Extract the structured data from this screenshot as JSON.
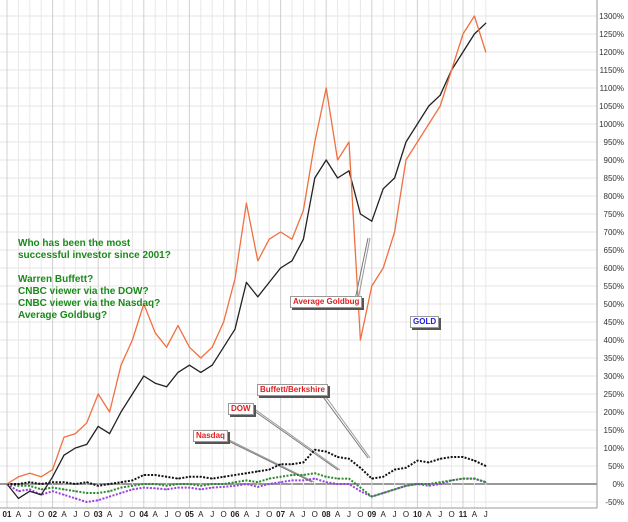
{
  "chart_data": {
    "type": "line",
    "title": "",
    "xlabel": "",
    "ylabel": "",
    "x_range": [
      2001.0,
      2011.6
    ],
    "ylim": [
      -60,
      1340
    ],
    "y_ticks": [
      -50,
      0,
      50,
      100,
      150,
      200,
      250,
      300,
      350,
      400,
      450,
      500,
      550,
      600,
      650,
      700,
      750,
      800,
      850,
      900,
      950,
      1000,
      1050,
      1100,
      1150,
      1200,
      1250,
      1300
    ],
    "y_tick_suffix": "%",
    "x_tick_labels": {
      "years": [
        "01",
        "02",
        "03",
        "04",
        "05",
        "06",
        "07",
        "08",
        "09",
        "10",
        "11"
      ],
      "months": [
        "A",
        "J",
        "O"
      ]
    },
    "grid": true,
    "x": [
      2001.0,
      2001.25,
      2001.5,
      2001.75,
      2002.0,
      2002.25,
      2002.5,
      2002.75,
      2003.0,
      2003.25,
      2003.5,
      2003.75,
      2004.0,
      2004.25,
      2004.5,
      2004.75,
      2005.0,
      2005.25,
      2005.5,
      2005.75,
      2006.0,
      2006.25,
      2006.5,
      2006.75,
      2007.0,
      2007.25,
      2007.5,
      2007.75,
      2008.0,
      2008.25,
      2008.5,
      2008.75,
      2009.0,
      2009.25,
      2009.5,
      2009.75,
      2010.0,
      2010.25,
      2010.5,
      2010.75,
      2011.0,
      2011.25,
      2011.5
    ],
    "series": [
      {
        "key": "gold",
        "color": "#f07040",
        "style": "solid",
        "values": [
          0,
          20,
          30,
          20,
          40,
          130,
          140,
          170,
          250,
          200,
          330,
          400,
          500,
          420,
          380,
          440,
          380,
          350,
          380,
          450,
          570,
          780,
          620,
          680,
          700,
          680,
          760,
          950,
          1100,
          900,
          950,
          400,
          550,
          600,
          700,
          900,
          950,
          1000,
          1050,
          1150,
          1250,
          1300,
          1200
        ]
      },
      {
        "key": "goldbug",
        "color": "#222222",
        "style": "solid",
        "values": [
          0,
          -40,
          -20,
          -30,
          20,
          80,
          100,
          110,
          160,
          140,
          200,
          250,
          300,
          280,
          270,
          310,
          330,
          310,
          330,
          380,
          430,
          560,
          520,
          560,
          600,
          620,
          680,
          850,
          900,
          850,
          870,
          750,
          730,
          820,
          850,
          950,
          1000,
          1050,
          1080,
          1150,
          1200,
          1250,
          1280
        ]
      },
      {
        "key": "buffett",
        "color": "#111111",
        "style": "dotted",
        "values": [
          0,
          0,
          5,
          0,
          5,
          5,
          0,
          5,
          -5,
          0,
          5,
          10,
          25,
          25,
          20,
          15,
          20,
          20,
          15,
          20,
          25,
          30,
          35,
          40,
          55,
          55,
          60,
          95,
          90,
          75,
          70,
          45,
          15,
          20,
          40,
          45,
          65,
          60,
          70,
          75,
          75,
          65,
          50
        ]
      },
      {
        "key": "dow",
        "color": "#2a8a2a",
        "style": "dotted",
        "values": [
          0,
          -5,
          -5,
          -15,
          -10,
          -15,
          -20,
          -25,
          -25,
          -20,
          -10,
          -5,
          0,
          0,
          -5,
          0,
          0,
          -5,
          0,
          0,
          5,
          10,
          5,
          15,
          20,
          25,
          25,
          30,
          20,
          15,
          15,
          -10,
          -35,
          -25,
          -15,
          -5,
          0,
          0,
          5,
          10,
          15,
          15,
          5
        ]
      },
      {
        "key": "nasdaq",
        "color": "#9a40e0",
        "style": "dotted",
        "values": [
          0,
          -20,
          -15,
          -30,
          -20,
          -30,
          -40,
          -50,
          -45,
          -35,
          -25,
          -15,
          -10,
          -12,
          -15,
          -10,
          -10,
          -15,
          -10,
          -8,
          -5,
          0,
          -8,
          0,
          5,
          10,
          10,
          15,
          5,
          0,
          0,
          -20,
          -35,
          -25,
          -15,
          -5,
          0,
          -5,
          0,
          10,
          15,
          15,
          5
        ]
      }
    ],
    "annotations": [
      {
        "key": "goldbug_label",
        "text": "Average Goldbug",
        "color": "#e02020"
      },
      {
        "key": "gold_label",
        "text": "GOLD",
        "color": "#2020e0"
      },
      {
        "key": "buffett_label",
        "text": "Buffett/Berkshire",
        "color": "#e02020"
      },
      {
        "key": "dow_label",
        "text": "DOW",
        "color": "#e02020"
      },
      {
        "key": "nasdaq_label",
        "text": "Nasdaq",
        "color": "#e02020"
      }
    ],
    "question_text": [
      "Who has been the most",
      "successful investor since 2001?",
      "",
      "Warren Buffett?",
      "CNBC viewer via the DOW?",
      "CNBC viewer via the Nasdaq?",
      "Average Goldbug?"
    ]
  }
}
